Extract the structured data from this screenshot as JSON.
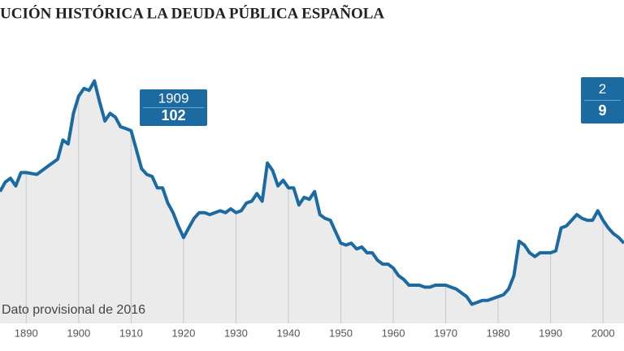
{
  "chart_data": {
    "type": "area-line",
    "title": "UCIÓN HISTÓRICA LA DEUDA PÚBLICA ESPAÑOLA",
    "note": "Dato provisional de 2016",
    "x": [
      1885,
      1886,
      1887,
      1888,
      1889,
      1890,
      1892,
      1894,
      1896,
      1897,
      1898,
      1899,
      1900,
      1901,
      1902,
      1903,
      1904,
      1905,
      1906,
      1907,
      1908,
      1909,
      1910,
      1911,
      1912,
      1913,
      1914,
      1915,
      1916,
      1917,
      1918,
      1919,
      1920,
      1921,
      1922,
      1923,
      1924,
      1925,
      1926,
      1927,
      1928,
      1929,
      1930,
      1931,
      1932,
      1933,
      1934,
      1935,
      1936,
      1937,
      1938,
      1939,
      1940,
      1941,
      1942,
      1943,
      1944,
      1945,
      1946,
      1947,
      1948,
      1949,
      1950,
      1951,
      1952,
      1953,
      1954,
      1955,
      1956,
      1957,
      1958,
      1959,
      1960,
      1961,
      1962,
      1963,
      1964,
      1965,
      1966,
      1967,
      1968,
      1969,
      1970,
      1971,
      1972,
      1973,
      1974,
      1975,
      1976,
      1977,
      1978,
      1979,
      1980,
      1981,
      1982,
      1983,
      1984,
      1985,
      1986,
      1987,
      1988,
      1989,
      1990,
      1991,
      1992,
      1993,
      1994,
      1995,
      1996,
      1997,
      1998,
      1999,
      2000,
      2001,
      2002,
      2003,
      2004
    ],
    "series": [
      {
        "name": "Deuda pública",
        "color": "#1b6aa1",
        "values": [
          69,
          74,
          76,
          72,
          79,
          79,
          78,
          82,
          86,
          96,
          94,
          110,
          119,
          123,
          122,
          127,
          116,
          106,
          110,
          108,
          103,
          102,
          101,
          91,
          81,
          78,
          77,
          71,
          71,
          63,
          58,
          51,
          45,
          50,
          55,
          58,
          58,
          57,
          58,
          59,
          58,
          60,
          58,
          59,
          63,
          64,
          68,
          64,
          84,
          80,
          72,
          75,
          71,
          71,
          62,
          66,
          65,
          69,
          57,
          55,
          54,
          48,
          42,
          41,
          42,
          39,
          40,
          37,
          37,
          33,
          31,
          31,
          29,
          25,
          23,
          20,
          20,
          20,
          19,
          19,
          20,
          20,
          20,
          19,
          18,
          16,
          14,
          10,
          11,
          12,
          12,
          13,
          14,
          15,
          18,
          25,
          43,
          41,
          37,
          35,
          37,
          37,
          37,
          38,
          50,
          51,
          54,
          57,
          55,
          54,
          54,
          59,
          54,
          50,
          47,
          45,
          42
        ]
      }
    ],
    "xlim": [
      1885,
      2004
    ],
    "ylim": [
      0,
      130
    ],
    "xticks": [
      1890,
      1900,
      1910,
      1920,
      1930,
      1940,
      1950,
      1960,
      1970,
      1980,
      1990,
      2000
    ],
    "grid": true,
    "area_color": "#ebebeb",
    "grid_color": "#c8c8c8",
    "annotations": [
      {
        "year_label": "1909",
        "value_label": "102",
        "box_color": "#1b6aa1"
      },
      {
        "year_label": "2",
        "value_label": "9",
        "box_color": "#1b6aa1"
      }
    ]
  }
}
